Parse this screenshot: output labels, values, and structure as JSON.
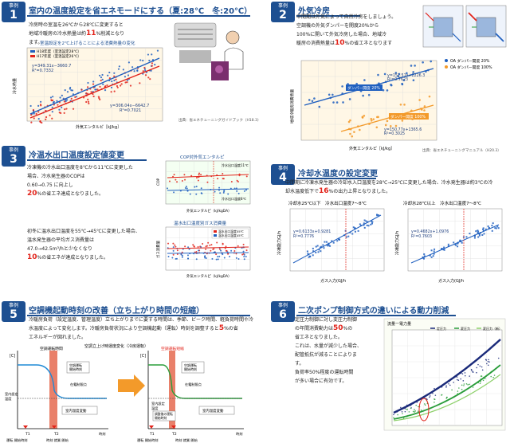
{
  "colors": {
    "badge": "#1d4f91",
    "title": "#1d4f91",
    "accent": "#e2231a",
    "orange": "#f39a2a",
    "chart_blue": "#1f5fbf"
  },
  "case1": {
    "badge_label": "事例",
    "badge_num": "1",
    "title": "室内の温度設定を省エネモードにする（夏:28℃　冬:20℃）",
    "text": [
      "冷房時の室温を26℃から28℃に変更すると",
      "地域冷暖房の冷水熱量は約",
      "11",
      "%削減となり",
      "ます。"
    ],
    "chart_title": "室温設定を2℃上げることによる消費熱量の変化",
    "legend": [
      "H18年度（室温設定28℃）",
      "H17年度（室温設定26℃）"
    ],
    "eq1": "y=349.31x−3660.7",
    "r1": "R²=0.7332",
    "eq2": "y=306.04x−6642.7",
    "r2": "R²=0.7021",
    "xlabel": "外気エンタルピ［kJ/kg］",
    "ylabel": "冷水熱量",
    "source": "出典：省エネチューニングガイドブック（H18.3）"
  },
  "case2": {
    "badge_label": "事例",
    "badge_num": "2",
    "title": "外気冷房",
    "text": [
      "中間期は外気によって自然冷房をしましょう。",
      "空調機の外気ダンパーを開度20%から",
      "100%に開いて外気冷房した場合、地域冷",
      "暖房の消費熱量は",
      "10",
      "%の省エネとなります"
    ],
    "legend": [
      "OA ダンパー開度 20%",
      "OA ダンパー開度 100%"
    ],
    "tag20": "ダンパー開度 20%",
    "tag100": "ダンパー開度 100%",
    "eq1": "y=151.51x+2226.3",
    "r1": "R²=0.7623",
    "eq2": "y=150.77x+1365.6",
    "r2": "R²=0.3025",
    "xlabel": "外気エンタルピ［kJ/kg］",
    "ylabel": "地域冷暖房消費熱量",
    "source": "出典：省エネチューニングマニュアル（H20.3）"
  },
  "case3": {
    "badge_label": "事例",
    "badge_num": "3",
    "title": "冷温水出口温度設定値変更",
    "text_a": [
      "冷凍機の冷水出口温度を8℃から11℃に変更した",
      "場合、冷水発生器のCOPは",
      "0.60→0.75 に向上し",
      "20",
      "%の省エネ達成となりました。"
    ],
    "text_b": [
      "初冬に温水出口温度を55℃→45℃に変更した場合、",
      "温水発生器の平均ガス消費量は",
      "47.0→42.5m³/hと少なくなり",
      "10",
      "%の省エネが達成となりました。"
    ],
    "chart1_title": "COP対外気エンタルピ",
    "chart1_legend": "冷水出口温度8℃",
    "chart1_legend2": "冷水出口温度11℃",
    "chart2_title": "温水出口温度別ガス消費量",
    "chart2_legend": [
      "温水出口温度55℃",
      "温水出口温度45℃"
    ],
    "xlabel": "外気エンタルピ（kJ/kgDA）",
    "ylabel": "COP",
    "ylabel2": "ガス消費量"
  },
  "case4": {
    "badge_label": "事例",
    "badge_num": "4",
    "title": "冷却水温度の設定変更",
    "text": [
      "中間期に冷凍水発生器の冷却水入口温度を28℃→25℃に変更した場合、冷水発生器は約3℃の冷",
      "却水温度低下で",
      "16",
      "%の出力上昇となりました。"
    ],
    "chart1_caption": "冷却水25℃以下　冷水出口温度7〜8℃",
    "chart2_caption": "冷却水28℃以上　冷水出口温度7〜8℃",
    "eq1": "y=0.6133x+0.9281",
    "r1": "R²=0.7776",
    "eq2": "y=0.4682x+1.0976",
    "r2": "R²=0.7603",
    "xlabel": "ガス入力(GJ/h",
    "ylabel": "冷凍能力GJ/h"
  },
  "case5": {
    "badge_label": "事例",
    "badge_num": "5",
    "title": "空調機起動時刻の改善（立ち上がり時間の短縮）",
    "text": [
      "冷暖房負荷（設定温度、管理温度）立ち上がりまでに要する時間は、季節、ピーク時間、軽負荷時間や冷",
      "水温度によって変化します。冷暖房負荷状況により空調機起動（運転）時刻を調整すると",
      "5",
      "%の省",
      "エネルギーが図れました。"
    ],
    "diagram_title": "空調立上げ時運度変化（冷房運転）",
    "left": {
      "top_label": "空調運転時間",
      "box1": "空調運転\n開始時刻",
      "box2": "在籍制限点",
      "set_temp": "室内設定\n温度",
      "room_label": "室内温度変動",
      "t1": "T1",
      "t2": "T2",
      "axis1": "運転 開始時刻",
      "axis2": "時刻 就業 開始",
      "time": "時刻",
      "c": "[C]"
    },
    "right": {
      "top_label": "空調運転短縮",
      "box1": "空調運転\n開始時刻",
      "box2": "在籍制限点",
      "set_temp": "室内設定\n温度",
      "adjust": "調整後の運転\n開始時刻",
      "room_label": "室内温度変動",
      "t1": "T1",
      "t2": "T2",
      "axis1": "運転 開始時刻",
      "axis2": "時刻 就業 開始",
      "time": "時刻",
      "c": "[C]"
    }
  },
  "case6": {
    "badge_label": "事例",
    "badge_num": "6",
    "title": "二次ポンプ制御方式の違いによる動力削減",
    "text": [
      "定圧力制御に対し変圧力制御",
      "の年間消費動力は",
      "50",
      "%の",
      "省エネとなりました。",
      "これは、水量が減少した場合、",
      "配管抵抗が減ることによりま",
      "す。",
      "負荷率50%程度の運転時間",
      "が多い場合に有効です。"
    ],
    "chart_title": "流量ー電力量",
    "legend": [
      "定圧力",
      "変圧力",
      "変圧力（新）"
    ]
  }
}
